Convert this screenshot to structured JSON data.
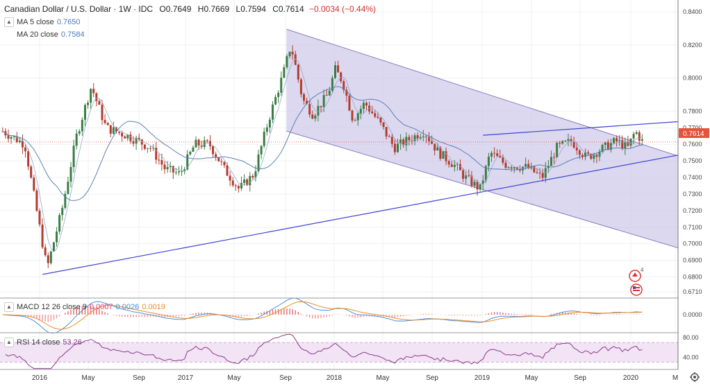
{
  "header": {
    "title": "Canadian Dollar / U.S. Dollar · 1W · IDC",
    "o": "O0.7649",
    "h": "H0.7669",
    "l": "L0.7594",
    "c": "C0.7614",
    "change": "−0.0034 (−0.44%)"
  },
  "indicators": {
    "ma5_label": "MA 5 close",
    "ma5_value": "0.7650",
    "ma20_label": "MA 20 close",
    "ma20_value": "0.7584"
  },
  "macd": {
    "label": "MACD 12 26 close 9",
    "v1": "0.0007",
    "v2": "0.0026",
    "v3": "0.0019",
    "axis": "0.0000"
  },
  "rsi": {
    "label": "RSI 14 close",
    "value": "53.26",
    "axis_top": "80.00",
    "axis_mid": "40.00"
  },
  "price_tag": "0.7614",
  "colors": {
    "up": "#3a7d44",
    "down": "#b23b2e",
    "channel": "#c9c3e6",
    "channel_line": "#8e7cc3",
    "trend": "#3d43d1",
    "ma": "#5b7fb5",
    "macd_line": "#4b8fd6",
    "signal_line": "#f08a24",
    "rsi_line": "#8b3a8b",
    "rsi_band": "#f2e3f5",
    "price_line": "#e5533c"
  },
  "icons": [
    "chevron-down-icon",
    "flag-ca-icon",
    "flag-us-icon",
    "settings-gear-icon"
  ],
  "chart_data": {
    "type": "candlestick",
    "title": "Canadian Dollar / U.S. Dollar",
    "interval": "1W",
    "ylim": [
      0.67,
      0.848
    ],
    "y_ticks": [
      "0.8400",
      "0.8200",
      "0.8000",
      "0.7800",
      "0.7700",
      "0.7600",
      "0.7500",
      "0.7400",
      "0.7300",
      "0.7200",
      "0.7100",
      "0.7000",
      "0.6900",
      "0.6800",
      "0.6710"
    ],
    "x_ticks": [
      "2016",
      "May",
      "Sep",
      "2017",
      "May",
      "Sep",
      "2018",
      "May",
      "Sep",
      "2019",
      "May",
      "Sep",
      "2020",
      "M"
    ],
    "last_close": 0.7614,
    "close_path": [
      [
        2015.75,
        0.768
      ],
      [
        2015.9,
        0.76
      ],
      [
        2016.05,
        0.685
      ],
      [
        2016.15,
        0.72
      ],
      [
        2016.25,
        0.765
      ],
      [
        2016.35,
        0.795
      ],
      [
        2016.45,
        0.77
      ],
      [
        2016.6,
        0.765
      ],
      [
        2016.75,
        0.758
      ],
      [
        2016.85,
        0.745
      ],
      [
        2016.95,
        0.742
      ],
      [
        2017.05,
        0.76
      ],
      [
        2017.15,
        0.76
      ],
      [
        2017.25,
        0.745
      ],
      [
        2017.35,
        0.733
      ],
      [
        2017.45,
        0.742
      ],
      [
        2017.55,
        0.775
      ],
      [
        2017.65,
        0.803
      ],
      [
        2017.7,
        0.82
      ],
      [
        2017.78,
        0.787
      ],
      [
        2017.85,
        0.778
      ],
      [
        2017.95,
        0.79
      ],
      [
        2018.0,
        0.805
      ],
      [
        2018.05,
        0.798
      ],
      [
        2018.12,
        0.775
      ],
      [
        2018.2,
        0.785
      ],
      [
        2018.3,
        0.773
      ],
      [
        2018.4,
        0.758
      ],
      [
        2018.5,
        0.763
      ],
      [
        2018.6,
        0.768
      ],
      [
        2018.7,
        0.755
      ],
      [
        2018.8,
        0.748
      ],
      [
        2018.88,
        0.74
      ],
      [
        2018.98,
        0.733
      ],
      [
        2019.05,
        0.755
      ],
      [
        2019.15,
        0.748
      ],
      [
        2019.3,
        0.746
      ],
      [
        2019.4,
        0.74
      ],
      [
        2019.5,
        0.758
      ],
      [
        2019.6,
        0.762
      ],
      [
        2019.7,
        0.752
      ],
      [
        2019.8,
        0.757
      ],
      [
        2019.9,
        0.762
      ],
      [
        2019.98,
        0.758
      ],
      [
        2020.03,
        0.768
      ],
      [
        2020.08,
        0.7614
      ]
    ],
    "macd_range": [
      -0.012,
      0.01
    ],
    "rsi_range": [
      15,
      90
    ]
  }
}
